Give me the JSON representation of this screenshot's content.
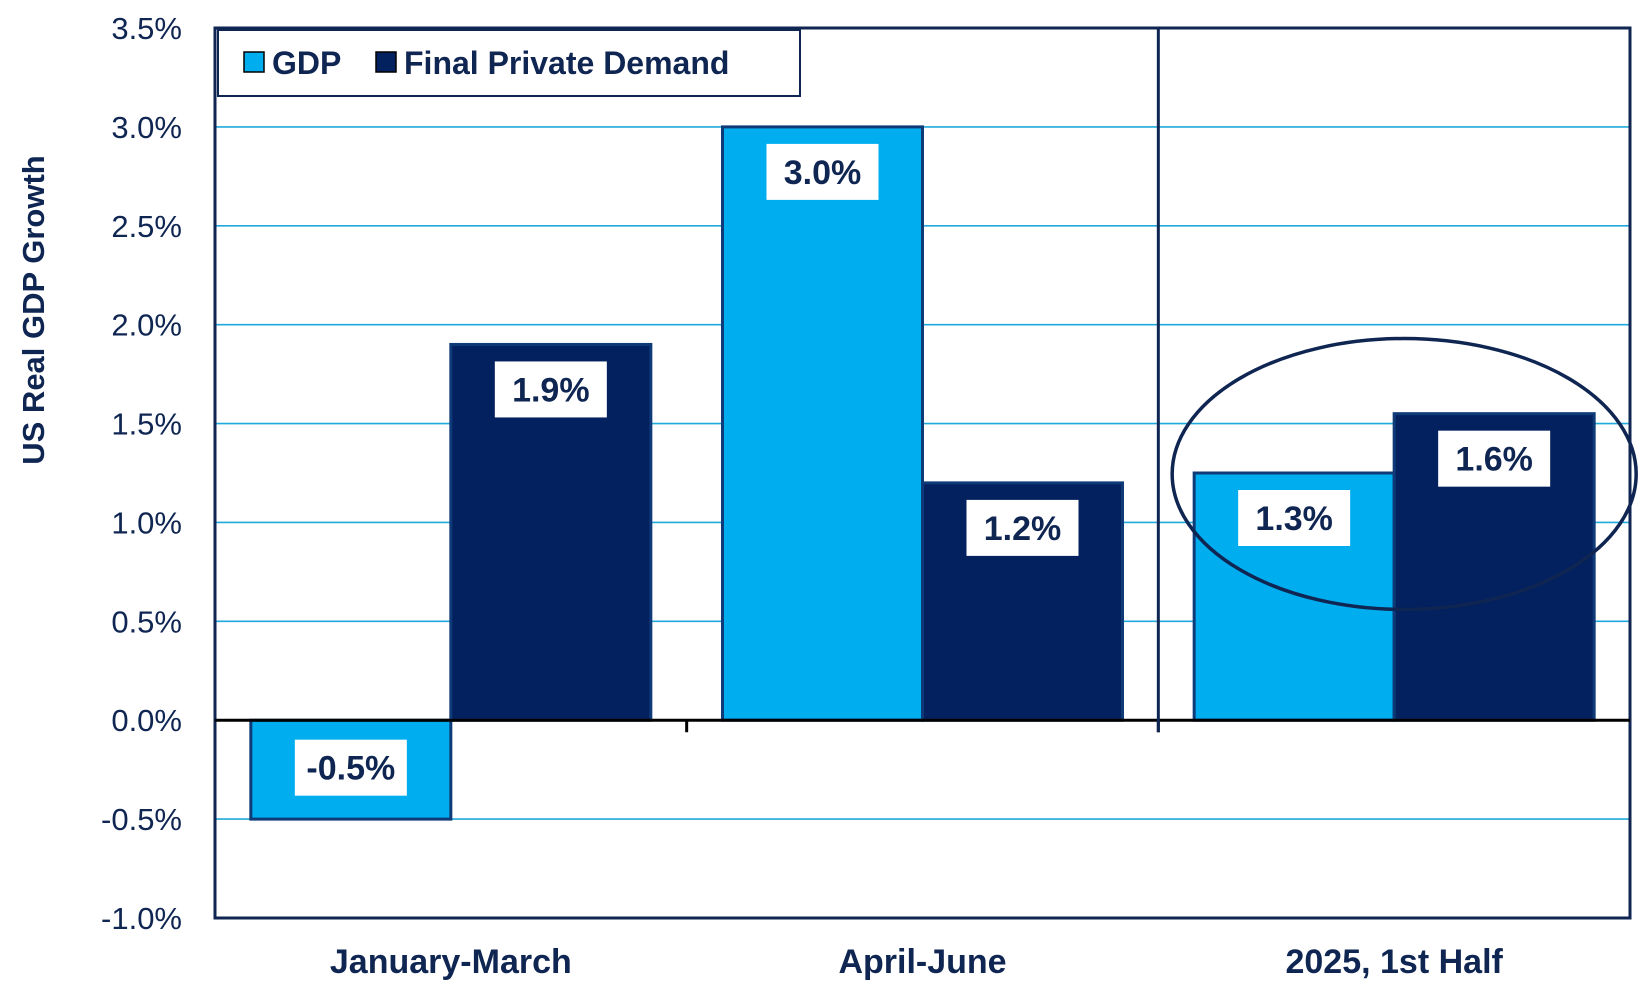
{
  "chart_data": {
    "type": "bar",
    "title": "",
    "xlabel": "",
    "ylabel": "US Real GDP Growth",
    "ylim": [
      -1.0,
      3.5
    ],
    "ytick_step": 0.5,
    "ytick_format": "percent_1dp",
    "grid": true,
    "legend_position": "top-left",
    "categories": [
      "January-March",
      "April-June",
      "2025, 1st Half"
    ],
    "series": [
      {
        "name": "GDP",
        "color": "#00adef",
        "values": [
          -0.5,
          3.0,
          1.25
        ],
        "labels": [
          "-0.5%",
          "3.0%",
          "1.3%"
        ]
      },
      {
        "name": "Final Private Demand",
        "color": "#04215f",
        "values": [
          1.9,
          1.2,
          1.55
        ],
        "labels": [
          "1.9%",
          "1.2%",
          "1.6%"
        ]
      }
    ],
    "annotations": [
      {
        "type": "vertical-separator",
        "between_categories": [
          1,
          2
        ]
      },
      {
        "type": "ellipse-highlight",
        "category": "2025, 1st Half"
      }
    ]
  },
  "colors": {
    "axis": "#0f2552",
    "grid": "#1fa9dc",
    "text": "#0f2552",
    "bar_border": "#0f3a78",
    "label_bg": "#ffffff"
  }
}
